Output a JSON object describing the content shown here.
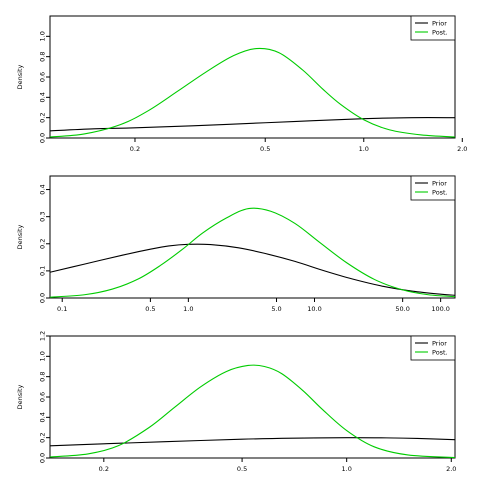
{
  "colors": {
    "prior": "#000000",
    "posterior": "#00cc00",
    "axis": "#000000",
    "background": "#ffffff"
  },
  "chart_data": [
    {
      "type": "line",
      "xscale": "log",
      "xlim": [
        0.11,
        1.9
      ],
      "ylim": [
        0,
        1.2
      ],
      "xticks": [
        0.2,
        0.5,
        1.0,
        2.0
      ],
      "xtick_labels": [
        "0.2",
        "0.5",
        "1.0",
        "2.0"
      ],
      "yticks": [
        0,
        0.2,
        0.4,
        0.6,
        0.8,
        1.0
      ],
      "ytick_labels": [
        "0.0",
        "0.2",
        "0.4",
        "0.6",
        "0.8",
        "1.0"
      ],
      "ylabel": "Density",
      "legend": {
        "position": "top-right",
        "entries": [
          "Prior",
          "Post."
        ]
      },
      "series": [
        {
          "name": "Prior",
          "color": "#000000",
          "x": [
            0.11,
            0.15,
            0.2,
            0.3,
            0.5,
            0.7,
            1.0,
            1.4,
            1.9
          ],
          "y": [
            0.07,
            0.09,
            0.1,
            0.12,
            0.15,
            0.17,
            0.19,
            0.2,
            0.2
          ]
        },
        {
          "name": "Post.",
          "color": "#00cc00",
          "x": [
            0.11,
            0.14,
            0.18,
            0.22,
            0.27,
            0.33,
            0.4,
            0.47,
            0.55,
            0.65,
            0.75,
            0.85,
            1.0,
            1.2,
            1.5,
            1.9
          ],
          "y": [
            0.01,
            0.04,
            0.13,
            0.27,
            0.46,
            0.65,
            0.81,
            0.88,
            0.84,
            0.67,
            0.48,
            0.33,
            0.18,
            0.08,
            0.03,
            0.01
          ]
        }
      ]
    },
    {
      "type": "line",
      "xscale": "log",
      "xlim": [
        0.08,
        130
      ],
      "ylim": [
        0,
        0.45
      ],
      "xticks": [
        0.1,
        0.5,
        1.0,
        5.0,
        10.0,
        50.0,
        100.0
      ],
      "xtick_labels": [
        "0.1",
        "0.5",
        "1.0",
        "5.0",
        "10.0",
        "50.0",
        "100.0"
      ],
      "yticks": [
        0,
        0.1,
        0.2,
        0.3,
        0.4
      ],
      "ytick_labels": [
        "0.0",
        "0.1",
        "0.2",
        "0.3",
        "0.4"
      ],
      "ylabel": "Density",
      "legend": {
        "position": "top-right",
        "entries": [
          "Prior",
          "Post."
        ]
      },
      "series": [
        {
          "name": "Prior",
          "color": "#000000",
          "x": [
            0.08,
            0.15,
            0.3,
            0.5,
            0.7,
            1.0,
            1.5,
            2.5,
            4.0,
            7.0,
            12.0,
            20.0,
            35.0,
            60.0,
            100.0,
            130.0
          ],
          "y": [
            0.095,
            0.125,
            0.158,
            0.18,
            0.192,
            0.198,
            0.197,
            0.185,
            0.165,
            0.135,
            0.1,
            0.07,
            0.043,
            0.025,
            0.014,
            0.01
          ]
        },
        {
          "name": "Post.",
          "color": "#00cc00",
          "x": [
            0.08,
            0.15,
            0.25,
            0.4,
            0.6,
            0.9,
            1.3,
            2.0,
            3.0,
            4.5,
            7.0,
            11.0,
            18.0,
            30.0,
            50.0,
            80.0,
            130.0
          ],
          "y": [
            0.003,
            0.012,
            0.033,
            0.07,
            0.12,
            0.18,
            0.24,
            0.295,
            0.33,
            0.32,
            0.275,
            0.205,
            0.13,
            0.068,
            0.03,
            0.012,
            0.005
          ]
        }
      ]
    },
    {
      "type": "line",
      "xscale": "log",
      "xlim": [
        0.14,
        2.05
      ],
      "ylim": [
        0,
        1.2
      ],
      "xticks": [
        0.2,
        0.5,
        1.0,
        2.0
      ],
      "xtick_labels": [
        "0.2",
        "0.5",
        "1.0",
        "2.0"
      ],
      "yticks": [
        0,
        0.2,
        0.4,
        0.6,
        0.8,
        1.0,
        1.2
      ],
      "ytick_labels": [
        "0.0",
        "0.2",
        "0.4",
        "0.6",
        "0.8",
        "1.0",
        "1.2"
      ],
      "ylabel": "Density",
      "legend": {
        "position": "top-right",
        "entries": [
          "Prior",
          "Post."
        ]
      },
      "series": [
        {
          "name": "Prior",
          "color": "#000000",
          "x": [
            0.14,
            0.2,
            0.3,
            0.5,
            0.7,
            1.0,
            1.3,
            1.6,
            2.05
          ],
          "y": [
            0.12,
            0.14,
            0.16,
            0.185,
            0.195,
            0.2,
            0.198,
            0.192,
            0.18
          ]
        },
        {
          "name": "Post.",
          "color": "#00cc00",
          "x": [
            0.14,
            0.18,
            0.22,
            0.27,
            0.32,
            0.38,
            0.45,
            0.52,
            0.58,
            0.65,
            0.75,
            0.85,
            1.0,
            1.2,
            1.5,
            2.05
          ],
          "y": [
            0.01,
            0.04,
            0.12,
            0.3,
            0.5,
            0.7,
            0.85,
            0.91,
            0.9,
            0.83,
            0.66,
            0.48,
            0.27,
            0.11,
            0.03,
            0.005
          ]
        }
      ]
    }
  ]
}
